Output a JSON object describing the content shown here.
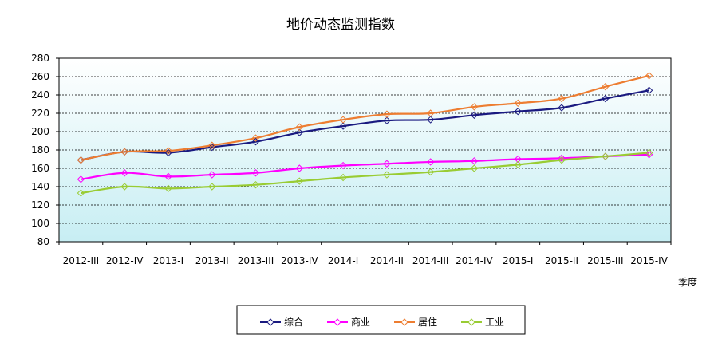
{
  "chart_data": {
    "type": "line",
    "title": "地价动态监测指数",
    "xlabel": "季度",
    "ylabel": "",
    "ylim": [
      80,
      280
    ],
    "yticks": [
      80,
      100,
      120,
      140,
      160,
      180,
      200,
      220,
      240,
      260,
      280
    ],
    "grid": true,
    "legend_position": "bottom",
    "categories": [
      "2012-III",
      "2012-IV",
      "2013-I",
      "2013-II",
      "2013-III",
      "2013-IV",
      "2014-I",
      "2014-II",
      "2014-III",
      "2014-IV",
      "2015-I",
      "2015-II",
      "2015-III",
      "2015-IV"
    ],
    "series": [
      {
        "name": "综合",
        "color": "#1a1a80",
        "values": [
          169,
          178,
          177,
          183,
          189,
          199,
          206,
          212,
          213,
          218,
          222,
          226,
          236,
          245
        ]
      },
      {
        "name": "商业",
        "color": "#ff00ff",
        "values": [
          148,
          155,
          151,
          153,
          155,
          160,
          163,
          165,
          167,
          168,
          170,
          171,
          173,
          175
        ]
      },
      {
        "name": "居住",
        "color": "#ed7d31",
        "values": [
          169,
          178,
          179,
          185,
          193,
          205,
          213,
          219,
          220,
          227,
          231,
          236,
          249,
          261
        ]
      },
      {
        "name": "工业",
        "color": "#99cc33",
        "values": [
          133,
          140,
          138,
          140,
          142,
          146,
          150,
          153,
          156,
          160,
          164,
          169,
          173,
          177
        ]
      }
    ]
  }
}
